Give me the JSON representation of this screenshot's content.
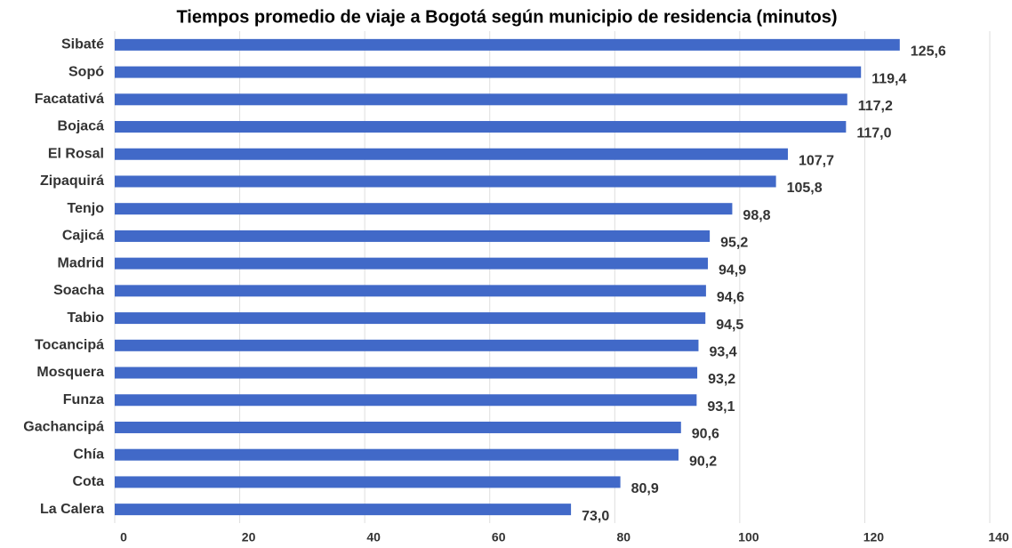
{
  "chart_data": {
    "type": "bar",
    "orientation": "horizontal",
    "title": "Tiempos promedio de viaje a Bogotá según municipio de residencia (minutos)",
    "categories": [
      "Sibaté",
      "Sopó",
      "Facatativá",
      "Bojacá",
      "El Rosal",
      "Zipaquirá",
      "Tenjo",
      "Cajicá",
      "Madrid",
      "Soacha",
      "Tabio",
      "Tocancipá",
      "Mosquera",
      "Funza",
      "Gachancipá",
      "Chía",
      "Cota",
      "La Calera"
    ],
    "values": [
      125.6,
      119.4,
      117.2,
      117.0,
      107.7,
      105.8,
      98.8,
      95.2,
      94.9,
      94.6,
      94.5,
      93.4,
      93.2,
      93.1,
      90.6,
      90.2,
      80.9,
      73.0
    ],
    "value_labels": [
      "125,6",
      "119,4",
      "117,2",
      "117,0",
      "107,7",
      "105,8",
      "98,8",
      "95,2",
      "94,9",
      "94,6",
      "94,5",
      "93,4",
      "93,2",
      "93,1",
      "90,6",
      "90,2",
      "80,9",
      "73,0"
    ],
    "color": "#4169c8",
    "xlim": [
      0,
      140
    ],
    "xticks": [
      0,
      20,
      40,
      60,
      80,
      100,
      120,
      140
    ],
    "grid": true
  }
}
